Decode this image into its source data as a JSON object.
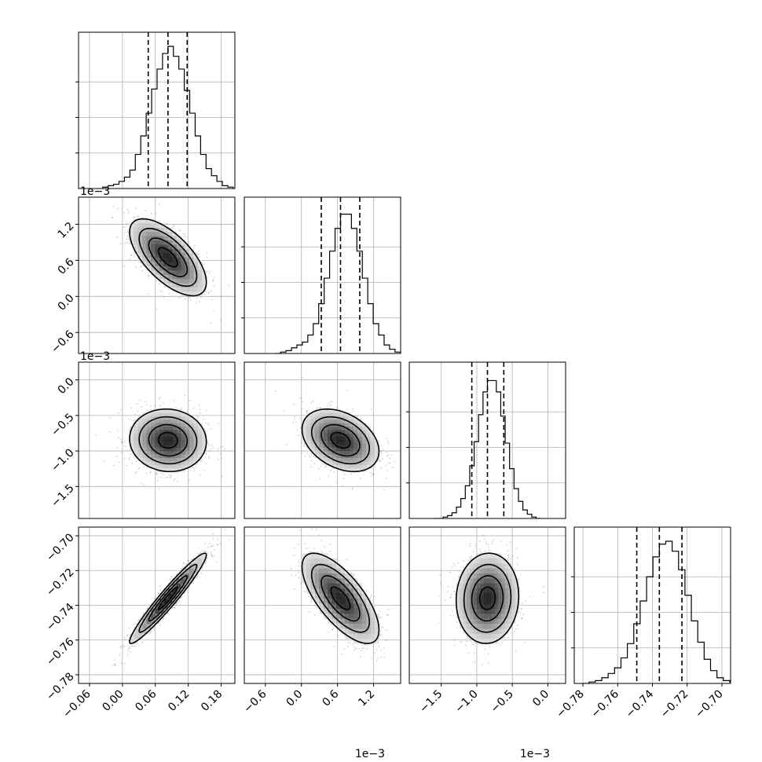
{
  "chart_data": {
    "type": "corner",
    "grid": true,
    "n_params": 4,
    "params": [
      {
        "center": 0.083,
        "sigma": 0.035,
        "q16": 0.047,
        "q50": 0.083,
        "q84": 0.118,
        "ticks": [
          "-0.06",
          "0.00",
          "0.06",
          "0.12",
          "0.18"
        ],
        "tick_values": [
          -0.06,
          0.0,
          0.06,
          0.12,
          0.18
        ],
        "range": [
          -0.08,
          0.205
        ],
        "offset": ""
      },
      {
        "center": 0.65,
        "sigma": 0.32,
        "q16": 0.33,
        "q50": 0.65,
        "q84": 0.97,
        "ticks": [
          "-0.6",
          "0.0",
          "0.6",
          "1.2"
        ],
        "tick_values": [
          -0.6,
          0.0,
          0.6,
          1.2
        ],
        "range": [
          -0.95,
          1.65
        ],
        "offset": "1e−3"
      },
      {
        "center": -0.85,
        "sigma": 0.22,
        "q16": -1.07,
        "q50": -0.85,
        "q84": -0.62,
        "ticks": [
          "-1.5",
          "-1.0",
          "-0.5",
          "0.0"
        ],
        "tick_values": [
          -1.5,
          -1.0,
          -0.5,
          0.0
        ],
        "range": [
          -1.95,
          0.25
        ],
        "offset": "1e−3"
      },
      {
        "center": -0.736,
        "sigma": 0.013,
        "q16": -0.749,
        "q50": -0.736,
        "q84": -0.723,
        "ticks": [
          "-0.78",
          "-0.76",
          "-0.74",
          "-0.72",
          "-0.70"
        ],
        "tick_values": [
          -0.78,
          -0.76,
          -0.74,
          -0.72,
          -0.7
        ],
        "range": [
          -0.785,
          -0.695
        ],
        "offset": ""
      }
    ],
    "correlations": [
      {
        "pair": [
          1,
          0
        ],
        "rho": -0.65
      },
      {
        "pair": [
          2,
          0
        ],
        "rho": -0.05
      },
      {
        "pair": [
          2,
          1
        ],
        "rho": -0.35
      },
      {
        "pair": [
          3,
          0
        ],
        "rho": 0.96
      },
      {
        "pair": [
          3,
          1
        ],
        "rho": -0.7
      },
      {
        "pair": [
          3,
          2
        ],
        "rho": 0.05
      }
    ],
    "histograms": [
      [
        0.01,
        0.02,
        0.03,
        0.05,
        0.08,
        0.13,
        0.24,
        0.37,
        0.53,
        0.7,
        0.84,
        0.95,
        1.0,
        0.93,
        0.84,
        0.69,
        0.53,
        0.37,
        0.24,
        0.14,
        0.09,
        0.05,
        0.02,
        0.01
      ],
      [
        0.0,
        0.01,
        0.02,
        0.04,
        0.06,
        0.08,
        0.13,
        0.21,
        0.35,
        0.53,
        0.72,
        0.88,
        0.98,
        0.98,
        0.88,
        0.72,
        0.53,
        0.35,
        0.21,
        0.13,
        0.06,
        0.03,
        0.01,
        0.0
      ],
      [
        0.0,
        0.0,
        0.01,
        0.02,
        0.04,
        0.08,
        0.14,
        0.23,
        0.37,
        0.54,
        0.73,
        0.89,
        0.97,
        0.97,
        0.89,
        0.72,
        0.53,
        0.35,
        0.21,
        0.12,
        0.06,
        0.03,
        0.01,
        0.0
      ],
      [
        0.0,
        0.01,
        0.02,
        0.04,
        0.07,
        0.11,
        0.18,
        0.28,
        0.42,
        0.58,
        0.75,
        0.89,
        0.98,
        1.0,
        0.93,
        0.8,
        0.62,
        0.44,
        0.29,
        0.17,
        0.09,
        0.04,
        0.02,
        0.01
      ]
    ],
    "contour_levels_sigma": [
      0.5,
      1.0,
      1.5,
      2.0
    ]
  }
}
